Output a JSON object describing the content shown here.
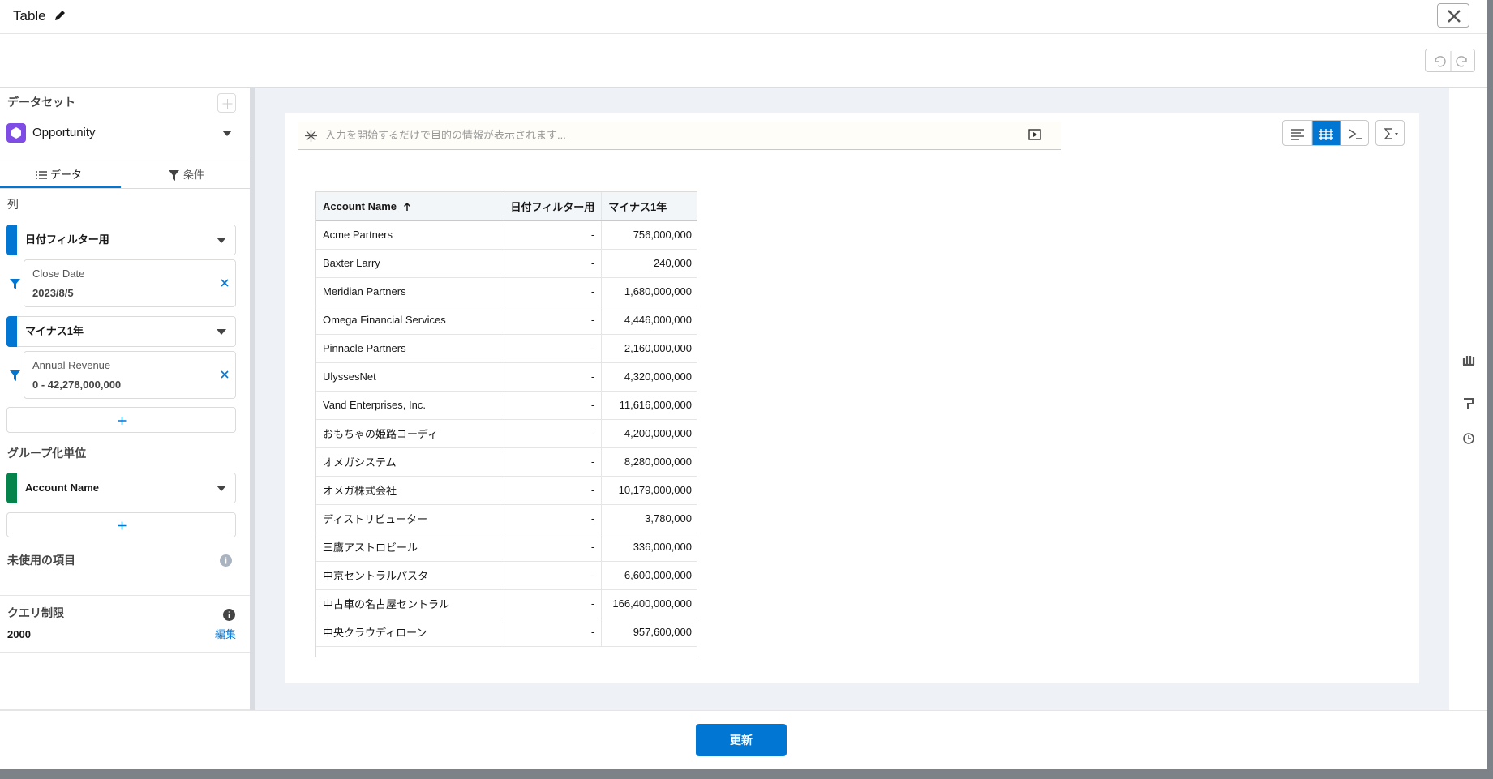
{
  "header": {
    "title": "Table"
  },
  "sidebar": {
    "dataset_label": "データセット",
    "dataset": "Opportunity",
    "tabs": [
      "データ",
      "条件"
    ],
    "columns_label": "列",
    "columns": [
      {
        "name": "日付フィルター用",
        "filter_field": "Close Date",
        "filter_value": "2023/8/5"
      },
      {
        "name": "マイナス1年",
        "filter_field": "Annual Revenue",
        "filter_value": "0 - 42,278,000,000"
      }
    ],
    "group_label": "グループ化単位",
    "group": "Account Name",
    "unused_label": "未使用の項目",
    "query_limit_label": "クエリ制限",
    "query_limit": "2000",
    "edit": "編集"
  },
  "search": {
    "placeholder": "入力を開始するだけで目的の情報が表示されます..."
  },
  "table": {
    "headers": [
      "Account Name",
      "日付フィルター用",
      "マイナス1年"
    ],
    "rows": [
      [
        "Acme Partners",
        "-",
        "756,000,000"
      ],
      [
        "Baxter Larry",
        "-",
        "240,000"
      ],
      [
        "Meridian Partners",
        "-",
        "1,680,000,000"
      ],
      [
        "Omega Financial Services",
        "-",
        "4,446,000,000"
      ],
      [
        "Pinnacle Partners",
        "-",
        "2,160,000,000"
      ],
      [
        "UlyssesNet",
        "-",
        "4,320,000,000"
      ],
      [
        "Vand Enterprises, Inc.",
        "-",
        "11,616,000,000"
      ],
      [
        "おもちゃの姫路コーディ",
        "-",
        "4,200,000,000"
      ],
      [
        "オメガシステム",
        "-",
        "8,280,000,000"
      ],
      [
        "オメガ株式会社",
        "-",
        "10,179,000,000"
      ],
      [
        "ディストリビューター",
        "-",
        "3,780,000"
      ],
      [
        "三鷹アストロビール",
        "-",
        "336,000,000"
      ],
      [
        "中京セントラルパスタ",
        "-",
        "6,600,000,000"
      ],
      [
        "中古車の名古屋セントラル",
        "-",
        "166,400,000,000"
      ],
      [
        "中央クラウディローン",
        "-",
        "957,600,000"
      ]
    ]
  },
  "footer": {
    "button": "更新"
  }
}
